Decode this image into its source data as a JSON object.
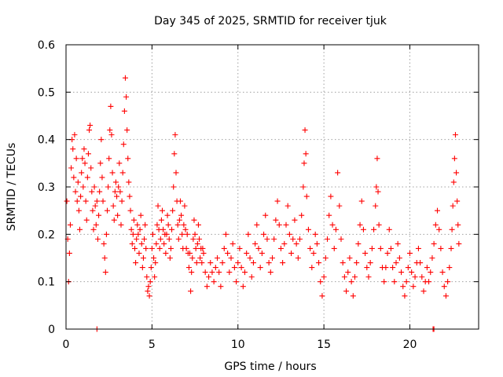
{
  "chart_data": {
    "type": "scatter",
    "title": "Day 345 of 2025, SRMTID for receiver tjuk",
    "xlabel": "GPS time / hours",
    "ylabel": "SRMTID / TECUs",
    "xlim": [
      0,
      24
    ],
    "ylim": [
      0,
      0.6
    ],
    "xticks": [
      0,
      5,
      10,
      15,
      20
    ],
    "xtick_labels": [
      "0",
      "5",
      "10",
      "15",
      "20"
    ],
    "yticks": [
      0,
      0.1,
      0.2,
      0.3,
      0.4,
      0.5,
      0.6
    ],
    "ytick_labels": [
      "0",
      "0.1",
      "0.2",
      "0.3",
      "0.4",
      "0.5",
      "0.6"
    ],
    "grid": true,
    "marker": "plus",
    "color": "#ff0000",
    "series": [
      {
        "name": "SRMTID",
        "points": [
          [
            0.05,
            0.27
          ],
          [
            0.1,
            0.19
          ],
          [
            0.15,
            0.1
          ],
          [
            0.2,
            0.16
          ],
          [
            0.25,
            0.22
          ],
          [
            0.3,
            0.34
          ],
          [
            0.35,
            0.4
          ],
          [
            0.4,
            0.38
          ],
          [
            0.45,
            0.32
          ],
          [
            0.5,
            0.41
          ],
          [
            0.55,
            0.29
          ],
          [
            0.6,
            0.36
          ],
          [
            0.65,
            0.27
          ],
          [
            0.7,
            0.31
          ],
          [
            0.75,
            0.25
          ],
          [
            0.8,
            0.21
          ],
          [
            0.85,
            0.28
          ],
          [
            0.9,
            0.33
          ],
          [
            0.95,
            0.36
          ],
          [
            1.0,
            0.3
          ],
          [
            1.05,
            0.38
          ],
          [
            1.1,
            0.35
          ],
          [
            1.15,
            0.27
          ],
          [
            1.2,
            0.23
          ],
          [
            1.25,
            0.32
          ],
          [
            1.3,
            0.37
          ],
          [
            1.35,
            0.42
          ],
          [
            1.4,
            0.43
          ],
          [
            1.45,
            0.34
          ],
          [
            1.5,
            0.29
          ],
          [
            1.55,
            0.25
          ],
          [
            1.6,
            0.21
          ],
          [
            1.65,
            0.3
          ],
          [
            1.7,
            0.26
          ],
          [
            1.75,
            0.22
          ],
          [
            1.8,
            0.27
          ],
          [
            1.85,
            0.19
          ],
          [
            1.9,
            0.24
          ],
          [
            1.95,
            0.29
          ],
          [
            2.0,
            0.35
          ],
          [
            2.05,
            0.4
          ],
          [
            2.1,
            0.32
          ],
          [
            2.15,
            0.27
          ],
          [
            2.2,
            0.18
          ],
          [
            2.25,
            0.15
          ],
          [
            2.3,
            0.12
          ],
          [
            2.35,
            0.2
          ],
          [
            2.4,
            0.25
          ],
          [
            2.45,
            0.3
          ],
          [
            2.5,
            0.36
          ],
          [
            2.55,
            0.42
          ],
          [
            2.6,
            0.47
          ],
          [
            2.65,
            0.41
          ],
          [
            2.7,
            0.33
          ],
          [
            2.75,
            0.26
          ],
          [
            2.8,
            0.23
          ],
          [
            2.85,
            0.29
          ],
          [
            2.9,
            0.31
          ],
          [
            2.95,
            0.28
          ],
          [
            3.0,
            0.24
          ],
          [
            3.05,
            0.3
          ],
          [
            3.1,
            0.35
          ],
          [
            3.15,
            0.29
          ],
          [
            3.2,
            0.22
          ],
          [
            3.25,
            0.27
          ],
          [
            3.3,
            0.33
          ],
          [
            3.35,
            0.39
          ],
          [
            3.4,
            0.46
          ],
          [
            3.45,
            0.53
          ],
          [
            3.5,
            0.49
          ],
          [
            3.55,
            0.42
          ],
          [
            3.6,
            0.36
          ],
          [
            3.65,
            0.31
          ],
          [
            3.7,
            0.28
          ],
          [
            3.75,
            0.25
          ],
          [
            3.8,
            0.21
          ],
          [
            3.85,
            0.18
          ],
          [
            3.9,
            0.2
          ],
          [
            3.95,
            0.23
          ],
          [
            4.0,
            0.17
          ],
          [
            4.05,
            0.14
          ],
          [
            4.1,
            0.19
          ],
          [
            4.15,
            0.22
          ],
          [
            4.2,
            0.2
          ],
          [
            4.25,
            0.16
          ],
          [
            4.3,
            0.21
          ],
          [
            4.35,
            0.24
          ],
          [
            4.4,
            0.18
          ],
          [
            4.45,
            0.13
          ],
          [
            4.5,
            0.15
          ],
          [
            4.55,
            0.19
          ],
          [
            4.6,
            0.22
          ],
          [
            4.65,
            0.17
          ],
          [
            4.7,
            0.11
          ],
          [
            4.75,
            0.08
          ],
          [
            4.8,
            0.09
          ],
          [
            4.85,
            0.07
          ],
          [
            4.9,
            0.1
          ],
          [
            4.95,
            0.13
          ],
          [
            5.0,
            0.17
          ],
          [
            5.05,
            0.2
          ],
          [
            5.1,
            0.15
          ],
          [
            5.15,
            0.11
          ],
          [
            5.2,
            0.14
          ],
          [
            5.25,
            0.18
          ],
          [
            5.3,
            0.22
          ],
          [
            5.35,
            0.26
          ],
          [
            5.4,
            0.21
          ],
          [
            5.45,
            0.17
          ],
          [
            5.5,
            0.19
          ],
          [
            5.55,
            0.23
          ],
          [
            5.6,
            0.25
          ],
          [
            5.65,
            0.21
          ],
          [
            5.7,
            0.18
          ],
          [
            5.75,
            0.2
          ],
          [
            5.8,
            0.16
          ],
          [
            5.85,
            0.2
          ],
          [
            5.9,
            0.24
          ],
          [
            5.95,
            0.22
          ],
          [
            6.0,
            0.19
          ],
          [
            6.05,
            0.15
          ],
          [
            6.1,
            0.17
          ],
          [
            6.15,
            0.21
          ],
          [
            6.2,
            0.25
          ],
          [
            6.25,
            0.3
          ],
          [
            6.3,
            0.37
          ],
          [
            6.35,
            0.41
          ],
          [
            6.4,
            0.33
          ],
          [
            6.45,
            0.27
          ],
          [
            6.5,
            0.22
          ],
          [
            6.55,
            0.19
          ],
          [
            6.6,
            0.23
          ],
          [
            6.65,
            0.27
          ],
          [
            6.7,
            0.24
          ],
          [
            6.75,
            0.2
          ],
          [
            6.8,
            0.17
          ],
          [
            6.85,
            0.22
          ],
          [
            6.9,
            0.26
          ],
          [
            6.95,
            0.21
          ],
          [
            7.0,
            0.17
          ],
          [
            7.05,
            0.2
          ],
          [
            7.1,
            0.16
          ],
          [
            7.15,
            0.13
          ],
          [
            7.2,
            0.16
          ],
          [
            7.25,
            0.08
          ],
          [
            7.3,
            0.12
          ],
          [
            7.35,
            0.15
          ],
          [
            7.4,
            0.19
          ],
          [
            7.45,
            0.23
          ],
          [
            7.5,
            0.2
          ],
          [
            7.55,
            0.17
          ],
          [
            7.6,
            0.14
          ],
          [
            7.65,
            0.18
          ],
          [
            7.7,
            0.22
          ],
          [
            7.75,
            0.19
          ],
          [
            7.8,
            0.15
          ],
          [
            7.85,
            0.17
          ],
          [
            7.9,
            0.14
          ],
          [
            7.95,
            0.17
          ],
          [
            8.0,
            0.16
          ],
          [
            8.1,
            0.12
          ],
          [
            8.2,
            0.09
          ],
          [
            8.3,
            0.11
          ],
          [
            8.4,
            0.14
          ],
          [
            8.5,
            0.12
          ],
          [
            8.6,
            0.1
          ],
          [
            8.7,
            0.13
          ],
          [
            8.8,
            0.15
          ],
          [
            8.9,
            0.12
          ],
          [
            9.0,
            0.09
          ],
          [
            9.1,
            0.14
          ],
          [
            9.2,
            0.17
          ],
          [
            9.3,
            0.2
          ],
          [
            9.4,
            0.16
          ],
          [
            9.5,
            0.12
          ],
          [
            9.6,
            0.15
          ],
          [
            9.7,
            0.18
          ],
          [
            9.8,
            0.13
          ],
          [
            9.9,
            0.1
          ],
          [
            10.0,
            0.14
          ],
          [
            10.1,
            0.17
          ],
          [
            10.2,
            0.13
          ],
          [
            10.3,
            0.09
          ],
          [
            10.4,
            0.12
          ],
          [
            10.5,
            0.16
          ],
          [
            10.6,
            0.2
          ],
          [
            10.7,
            0.15
          ],
          [
            10.8,
            0.11
          ],
          [
            10.9,
            0.14
          ],
          [
            11.0,
            0.18
          ],
          [
            11.1,
            0.22
          ],
          [
            11.2,
            0.17
          ],
          [
            11.3,
            0.13
          ],
          [
            11.4,
            0.16
          ],
          [
            11.5,
            0.2
          ],
          [
            11.6,
            0.24
          ],
          [
            11.7,
            0.19
          ],
          [
            11.8,
            0.14
          ],
          [
            11.9,
            0.12
          ],
          [
            12.0,
            0.15
          ],
          [
            12.1,
            0.19
          ],
          [
            12.2,
            0.23
          ],
          [
            12.3,
            0.27
          ],
          [
            12.4,
            0.22
          ],
          [
            12.5,
            0.17
          ],
          [
            12.6,
            0.14
          ],
          [
            12.7,
            0.18
          ],
          [
            12.8,
            0.22
          ],
          [
            12.9,
            0.26
          ],
          [
            13.0,
            0.2
          ],
          [
            13.1,
            0.16
          ],
          [
            13.2,
            0.19
          ],
          [
            13.3,
            0.23
          ],
          [
            13.4,
            0.18
          ],
          [
            13.5,
            0.15
          ],
          [
            13.6,
            0.19
          ],
          [
            13.7,
            0.24
          ],
          [
            13.8,
            0.3
          ],
          [
            13.85,
            0.35
          ],
          [
            13.9,
            0.42
          ],
          [
            13.95,
            0.37
          ],
          [
            14.0,
            0.28
          ],
          [
            14.1,
            0.21
          ],
          [
            14.2,
            0.17
          ],
          [
            14.3,
            0.13
          ],
          [
            14.4,
            0.16
          ],
          [
            14.5,
            0.2
          ],
          [
            14.6,
            0.18
          ],
          [
            14.7,
            0.14
          ],
          [
            14.8,
            0.1
          ],
          [
            14.9,
            0.07
          ],
          [
            15.0,
            0.11
          ],
          [
            15.1,
            0.15
          ],
          [
            15.2,
            0.19
          ],
          [
            15.3,
            0.24
          ],
          [
            15.4,
            0.28
          ],
          [
            15.5,
            0.22
          ],
          [
            15.6,
            0.17
          ],
          [
            15.7,
            0.21
          ],
          [
            15.8,
            0.33
          ],
          [
            15.9,
            0.26
          ],
          [
            16.0,
            0.19
          ],
          [
            16.1,
            0.14
          ],
          [
            16.2,
            0.11
          ],
          [
            16.3,
            0.08
          ],
          [
            16.4,
            0.12
          ],
          [
            16.5,
            0.15
          ],
          [
            16.6,
            0.1
          ],
          [
            16.7,
            0.07
          ],
          [
            16.8,
            0.11
          ],
          [
            16.9,
            0.14
          ],
          [
            17.0,
            0.18
          ],
          [
            17.1,
            0.22
          ],
          [
            17.2,
            0.27
          ],
          [
            17.3,
            0.21
          ],
          [
            17.4,
            0.16
          ],
          [
            17.5,
            0.13
          ],
          [
            17.6,
            0.11
          ],
          [
            17.7,
            0.14
          ],
          [
            17.8,
            0.17
          ],
          [
            17.9,
            0.21
          ],
          [
            18.0,
            0.26
          ],
          [
            18.05,
            0.3
          ],
          [
            18.1,
            0.36
          ],
          [
            18.15,
            0.29
          ],
          [
            18.2,
            0.22
          ],
          [
            18.3,
            0.17
          ],
          [
            18.4,
            0.13
          ],
          [
            18.5,
            0.1
          ],
          [
            18.6,
            0.13
          ],
          [
            18.7,
            0.16
          ],
          [
            18.8,
            0.21
          ],
          [
            18.9,
            0.17
          ],
          [
            19.0,
            0.13
          ],
          [
            19.1,
            0.1
          ],
          [
            19.2,
            0.14
          ],
          [
            19.3,
            0.18
          ],
          [
            19.4,
            0.15
          ],
          [
            19.5,
            0.12
          ],
          [
            19.6,
            0.09
          ],
          [
            19.7,
            0.07
          ],
          [
            19.8,
            0.1
          ],
          [
            19.9,
            0.13
          ],
          [
            20.0,
            0.16
          ],
          [
            20.1,
            0.12
          ],
          [
            20.2,
            0.09
          ],
          [
            20.3,
            0.11
          ],
          [
            20.4,
            0.14
          ],
          [
            20.5,
            0.17
          ],
          [
            20.6,
            0.14
          ],
          [
            20.7,
            0.11
          ],
          [
            20.8,
            0.08
          ],
          [
            20.9,
            0.1
          ],
          [
            21.0,
            0.13
          ],
          [
            21.1,
            0.1
          ],
          [
            21.2,
            0.12
          ],
          [
            21.3,
            0.15
          ],
          [
            21.4,
            0.18
          ],
          [
            21.5,
            0.22
          ],
          [
            21.6,
            0.25
          ],
          [
            21.7,
            0.21
          ],
          [
            21.8,
            0.17
          ],
          [
            21.9,
            0.12
          ],
          [
            22.0,
            0.09
          ],
          [
            22.1,
            0.07
          ],
          [
            22.2,
            0.1
          ],
          [
            22.3,
            0.13
          ],
          [
            22.4,
            0.17
          ],
          [
            22.45,
            0.21
          ],
          [
            22.5,
            0.26
          ],
          [
            22.55,
            0.31
          ],
          [
            22.6,
            0.36
          ],
          [
            22.65,
            0.41
          ],
          [
            22.7,
            0.33
          ],
          [
            22.75,
            0.27
          ],
          [
            22.8,
            0.22
          ],
          [
            22.85,
            0.18
          ],
          [
            1.8,
            0.0
          ],
          [
            21.35,
            0.0
          ],
          [
            21.4,
            0.0
          ]
        ]
      }
    ]
  }
}
